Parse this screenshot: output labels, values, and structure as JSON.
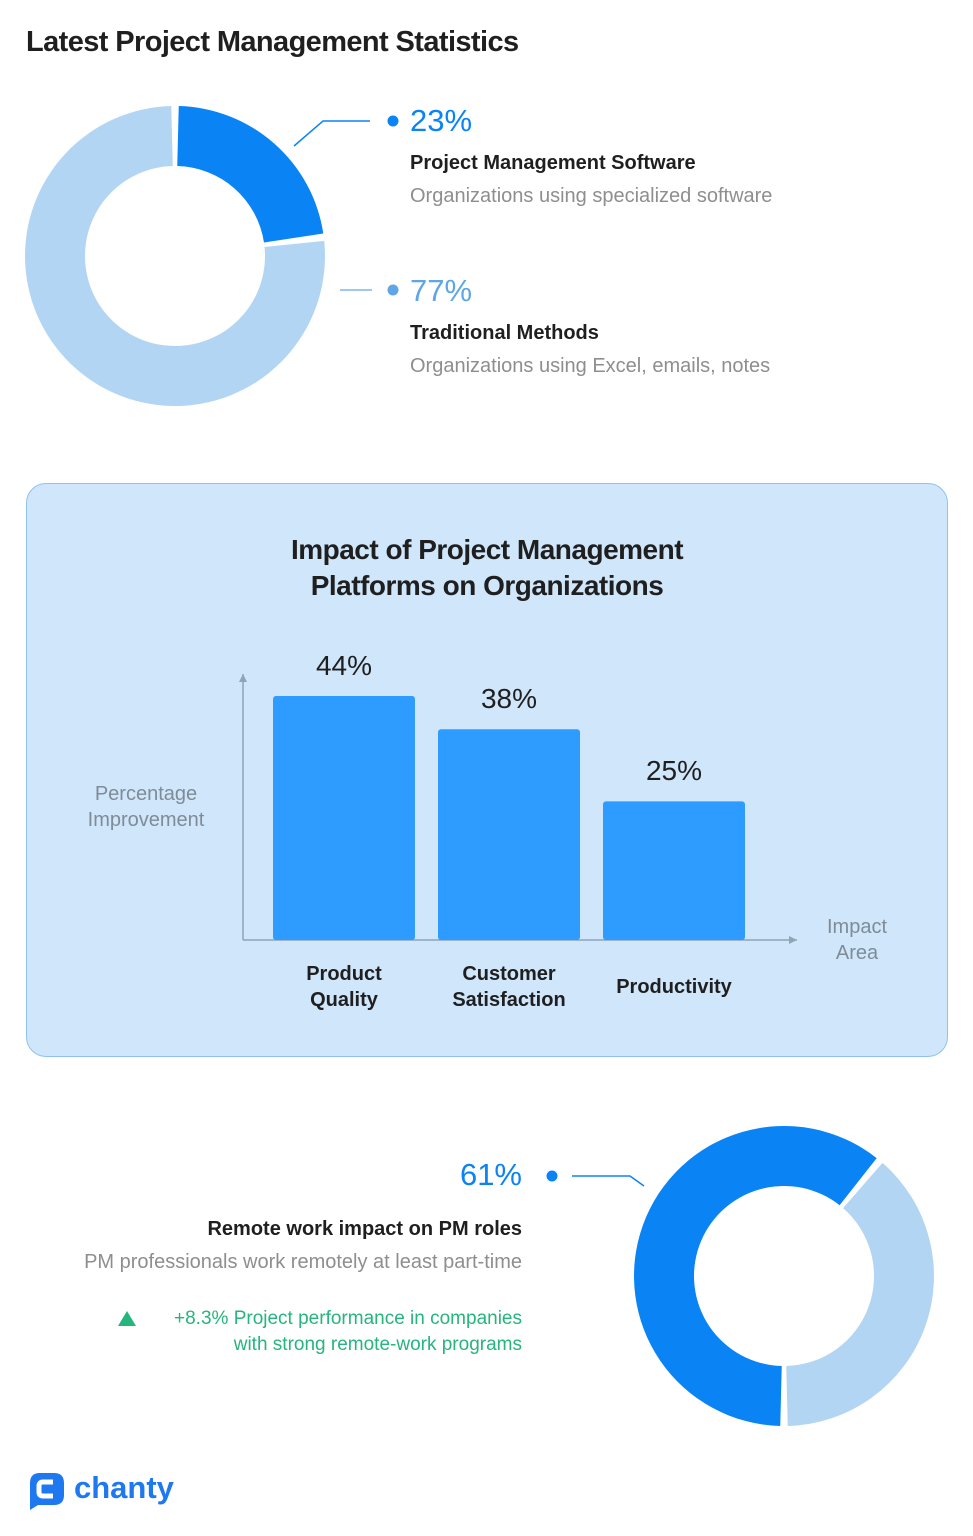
{
  "page": {
    "title": "Latest Project Management Statistics"
  },
  "donut_top": {
    "slices": [
      {
        "percent_label": "23%",
        "value": 23,
        "title": "Project Management Software",
        "subtitle": "Organizations using specialized software",
        "color": "#0a84f5"
      },
      {
        "percent_label": "77%",
        "value": 77,
        "title": "Traditional Methods",
        "subtitle": "Organizations using Excel, emails, notes",
        "color": "#b3d5f4"
      }
    ]
  },
  "chart_data": {
    "type": "bar",
    "title_line1": "Impact of Project Management",
    "title_line2": "Platforms on Organizations",
    "categories": [
      "Product Quality",
      "Customer Satisfaction",
      "Productivity"
    ],
    "category_lines": [
      [
        "Product",
        "Quality"
      ],
      [
        "Customer",
        "Satisfaction"
      ],
      [
        "Productivity"
      ]
    ],
    "values": [
      44,
      38,
      25
    ],
    "value_labels": [
      "44%",
      "38%",
      "25%"
    ],
    "ylabel_line1": "Percentage",
    "ylabel_line2": "Improvement",
    "xlabel_line1": "Impact",
    "xlabel_line2": "Area",
    "ylim": [
      0,
      50
    ],
    "bar_color": "#2d9bff"
  },
  "donut_bottom": {
    "percent_label": "61%",
    "value": 61,
    "title": "Remote work impact on PM roles",
    "subtitle": "PM professionals work remotely at least part-time",
    "growth_line1": "+8.3% Project performance in companies",
    "growth_line2": "with strong remote-work programs",
    "colors": {
      "primary": "#0a84f5",
      "secondary": "#b3d5f4"
    }
  },
  "brand": {
    "name": "chanty",
    "color": "#1e78f0"
  },
  "icons": {
    "logo": "chat-bubble-icon",
    "growth": "triangle-up-icon"
  }
}
